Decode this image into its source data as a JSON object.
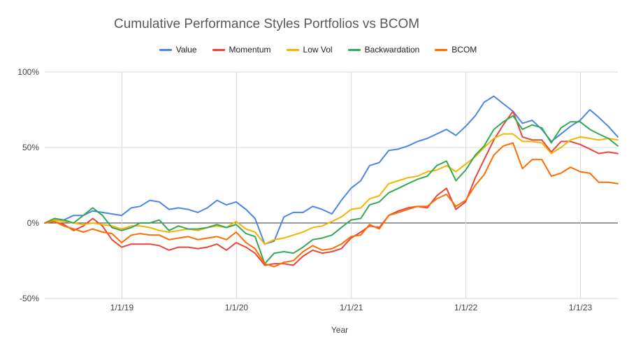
{
  "chart_data": {
    "type": "line",
    "title": "Cumulative Performance Styles Portfolios vs BCOM",
    "xlabel": "Year",
    "ylabel": "",
    "ylim": [
      -0.5,
      1.0
    ],
    "y_ticks": [
      {
        "value": 1.0,
        "label": "100%"
      },
      {
        "value": 0.5,
        "label": "50%"
      },
      {
        "value": 0.0,
        "label": "0%"
      },
      {
        "value": -0.5,
        "label": "-50%"
      }
    ],
    "x_ticks": [
      {
        "value": "2019-01-01",
        "label": "1/1/19"
      },
      {
        "value": "2020-01-01",
        "label": "1/1/20"
      },
      {
        "value": "2021-01-01",
        "label": "1/1/21"
      },
      {
        "value": "2022-01-01",
        "label": "1/1/22"
      },
      {
        "value": "2023-01-01",
        "label": "1/1/23"
      }
    ],
    "x": [
      "2018-04-30",
      "2018-05-31",
      "2018-06-30",
      "2018-07-31",
      "2018-08-31",
      "2018-09-30",
      "2018-10-31",
      "2018-11-30",
      "2018-12-31",
      "2019-01-31",
      "2019-02-28",
      "2019-03-31",
      "2019-04-30",
      "2019-05-31",
      "2019-06-30",
      "2019-07-31",
      "2019-08-31",
      "2019-09-30",
      "2019-10-31",
      "2019-11-30",
      "2019-12-31",
      "2020-01-31",
      "2020-02-29",
      "2020-03-31",
      "2020-04-30",
      "2020-05-31",
      "2020-06-30",
      "2020-07-31",
      "2020-08-31",
      "2020-09-30",
      "2020-10-31",
      "2020-11-30",
      "2020-12-31",
      "2021-01-31",
      "2021-02-28",
      "2021-03-31",
      "2021-04-30",
      "2021-05-31",
      "2021-06-30",
      "2021-07-31",
      "2021-08-31",
      "2021-09-30",
      "2021-10-31",
      "2021-11-30",
      "2021-12-31",
      "2022-01-31",
      "2022-02-28",
      "2022-03-31",
      "2022-04-30",
      "2022-05-31",
      "2022-06-30",
      "2022-07-31",
      "2022-08-31",
      "2022-09-30",
      "2022-10-31",
      "2022-11-30",
      "2022-12-31",
      "2023-01-31",
      "2023-02-28",
      "2023-03-31",
      "2023-04-30"
    ],
    "series": [
      {
        "name": "Value",
        "color": "#4a86e8",
        "values": [
          0.0,
          0.02,
          0.02,
          0.05,
          0.05,
          0.08,
          0.07,
          0.06,
          0.05,
          0.1,
          0.11,
          0.15,
          0.14,
          0.09,
          0.1,
          0.09,
          0.07,
          0.1,
          0.15,
          0.12,
          0.14,
          0.09,
          0.03,
          -0.14,
          -0.12,
          0.04,
          0.07,
          0.07,
          0.11,
          0.09,
          0.06,
          0.15,
          0.23,
          0.28,
          0.38,
          0.4,
          0.48,
          0.49,
          0.51,
          0.54,
          0.56,
          0.59,
          0.62,
          0.58,
          0.64,
          0.71,
          0.8,
          0.84,
          0.79,
          0.74,
          0.66,
          0.68,
          0.62,
          0.54,
          0.59,
          0.64,
          0.68,
          0.75,
          0.7,
          0.64,
          0.57
        ]
      },
      {
        "name": "Momentum",
        "color": "#e8453c",
        "values": [
          0.0,
          0.01,
          -0.01,
          -0.05,
          -0.02,
          0.03,
          -0.02,
          -0.11,
          -0.16,
          -0.14,
          -0.14,
          -0.14,
          -0.15,
          -0.18,
          -0.16,
          -0.16,
          -0.17,
          -0.16,
          -0.14,
          -0.18,
          -0.13,
          -0.16,
          -0.2,
          -0.28,
          -0.27,
          -0.27,
          -0.28,
          -0.22,
          -0.18,
          -0.2,
          -0.19,
          -0.17,
          -0.1,
          -0.06,
          -0.02,
          -0.03,
          0.05,
          0.08,
          0.1,
          0.11,
          0.1,
          0.18,
          0.23,
          0.09,
          0.14,
          0.3,
          0.42,
          0.55,
          0.65,
          0.74,
          0.57,
          0.55,
          0.55,
          0.47,
          0.54,
          0.54,
          0.52,
          0.49,
          0.46,
          0.47,
          0.46
        ]
      },
      {
        "name": "Low Vol",
        "color": "#f4b400",
        "values": [
          0.0,
          0.02,
          0.01,
          0.0,
          -0.01,
          0.0,
          -0.01,
          -0.02,
          -0.04,
          -0.02,
          -0.02,
          -0.03,
          -0.05,
          -0.06,
          -0.05,
          -0.04,
          -0.05,
          -0.03,
          -0.02,
          -0.03,
          0.01,
          -0.04,
          -0.06,
          -0.14,
          -0.11,
          -0.1,
          -0.08,
          -0.06,
          -0.03,
          -0.02,
          0.01,
          0.04,
          0.09,
          0.1,
          0.16,
          0.18,
          0.26,
          0.28,
          0.3,
          0.31,
          0.34,
          0.35,
          0.38,
          0.34,
          0.39,
          0.44,
          0.5,
          0.56,
          0.59,
          0.59,
          0.54,
          0.54,
          0.53,
          0.46,
          0.5,
          0.55,
          0.57,
          0.56,
          0.55,
          0.56,
          0.55
        ]
      },
      {
        "name": "Backwardation",
        "color": "#34a853",
        "values": [
          0.0,
          0.03,
          0.02,
          0.0,
          0.05,
          0.1,
          0.05,
          -0.03,
          -0.05,
          -0.03,
          0.0,
          0.0,
          0.02,
          -0.05,
          -0.02,
          -0.04,
          -0.04,
          -0.03,
          -0.01,
          -0.03,
          -0.01,
          -0.07,
          -0.09,
          -0.27,
          -0.2,
          -0.19,
          -0.2,
          -0.16,
          -0.11,
          -0.1,
          -0.08,
          -0.03,
          0.02,
          0.03,
          0.12,
          0.14,
          0.2,
          0.23,
          0.26,
          0.29,
          0.31,
          0.38,
          0.41,
          0.28,
          0.35,
          0.45,
          0.51,
          0.62,
          0.67,
          0.71,
          0.62,
          0.65,
          0.63,
          0.53,
          0.63,
          0.67,
          0.67,
          0.62,
          0.59,
          0.56,
          0.51
        ]
      },
      {
        "name": "BCOM",
        "color": "#ff6d01",
        "values": [
          0.0,
          0.01,
          -0.02,
          -0.04,
          -0.06,
          -0.04,
          -0.06,
          -0.07,
          -0.13,
          -0.08,
          -0.07,
          -0.08,
          -0.08,
          -0.11,
          -0.1,
          -0.09,
          -0.11,
          -0.1,
          -0.09,
          -0.11,
          -0.06,
          -0.13,
          -0.17,
          -0.27,
          -0.29,
          -0.26,
          -0.25,
          -0.19,
          -0.15,
          -0.18,
          -0.17,
          -0.14,
          -0.09,
          -0.08,
          -0.01,
          -0.04,
          0.05,
          0.07,
          0.09,
          0.11,
          0.11,
          0.16,
          0.19,
          0.11,
          0.15,
          0.25,
          0.32,
          0.45,
          0.51,
          0.53,
          0.36,
          0.42,
          0.42,
          0.31,
          0.33,
          0.37,
          0.34,
          0.33,
          0.27,
          0.27,
          0.26
        ]
      }
    ],
    "grid": true,
    "legend_position": "top"
  }
}
